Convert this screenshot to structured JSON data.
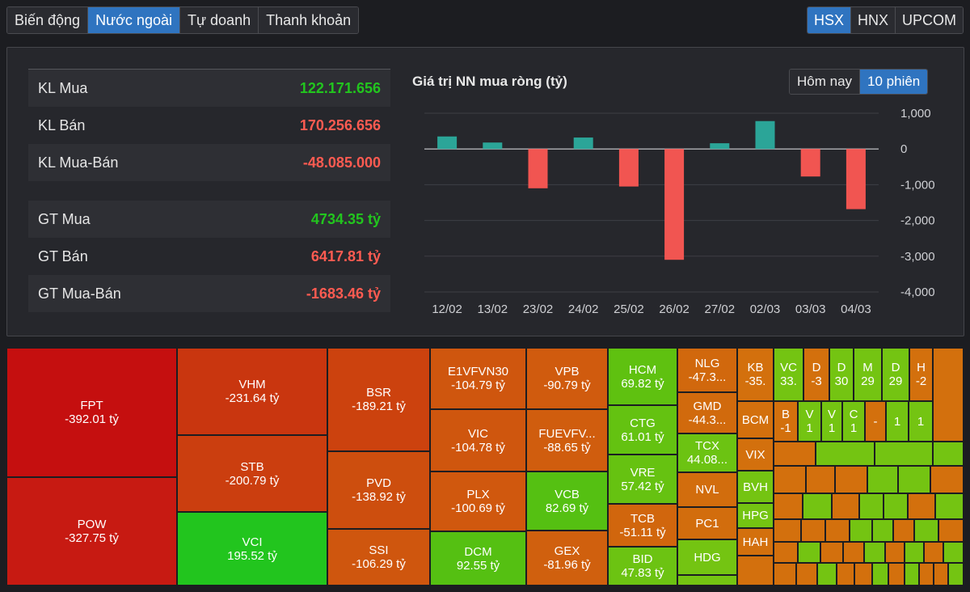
{
  "tabs": [
    "Biến động",
    "Nước ngoài",
    "Tự doanh",
    "Thanh khoản"
  ],
  "active_tab": 1,
  "exchanges": [
    "HSX",
    "HNX",
    "UPCOM"
  ],
  "active_exchange": 0,
  "stats": [
    {
      "label": "KL Mua",
      "value": "122.171.656",
      "color": "#22c51e"
    },
    {
      "label": "KL Bán",
      "value": "170.256.656",
      "color": "#ff5b51"
    },
    {
      "label": "KL Mua-Bán",
      "value": "-48.085.000",
      "color": "#ff5b51"
    },
    {
      "label": "GT Mua",
      "value": "4734.35 tỷ",
      "color": "#22c51e"
    },
    {
      "label": "GT Bán",
      "value": "6417.81 tỷ",
      "color": "#ff5b51"
    },
    {
      "label": "GT Mua-Bán",
      "value": "-1683.46 tỷ",
      "color": "#ff5b51"
    }
  ],
  "chart_title": "Giá trị NN mua ròng (tỷ)",
  "range_buttons": [
    "Hôm nay",
    "10 phiên"
  ],
  "active_range": 1,
  "chart_data": {
    "type": "bar",
    "title": "Giá trị NN mua ròng (tỷ)",
    "categories": [
      "12/02",
      "13/02",
      "23/02",
      "24/02",
      "25/02",
      "26/02",
      "27/02",
      "02/03",
      "03/03",
      "04/03"
    ],
    "values": [
      350,
      180,
      -1100,
      320,
      -1050,
      -3100,
      160,
      780,
      -770,
      -1683
    ],
    "ylim": [
      -4000,
      1000
    ],
    "yticks": [
      1000,
      0,
      -1000,
      -2000,
      -3000,
      -4000
    ],
    "ytick_labels": [
      "1,000",
      "0",
      "-1,000",
      "-2,000",
      "-3,000",
      "-4,000"
    ],
    "colors": {
      "positive": "#2ba598",
      "negative": "#f15551"
    },
    "grid": true
  },
  "treemap": [
    {
      "name": "FPT",
      "value": "-392.01 tỷ",
      "color": "#c50f0f"
    },
    {
      "name": "POW",
      "value": "-327.75 tỷ",
      "color": "#c71a12"
    },
    {
      "name": "VHM",
      "value": "-231.64 tỷ",
      "color": "#c9360f"
    },
    {
      "name": "STB",
      "value": "-200.79 tỷ",
      "color": "#cb3e0f"
    },
    {
      "name": "VCI",
      "value": "195.52 tỷ",
      "color": "#22c51e"
    },
    {
      "name": "BSR",
      "value": "-189.21 tỷ",
      "color": "#cc420e"
    },
    {
      "name": "PVD",
      "value": "-138.92 tỷ",
      "color": "#cd4e0e"
    },
    {
      "name": "SSI",
      "value": "-106.29 tỷ",
      "color": "#cf560e"
    },
    {
      "name": "E1VFVN30",
      "value": "-104.79 tỷ",
      "color": "#cf560e"
    },
    {
      "name": "VIC",
      "value": "-104.78 tỷ",
      "color": "#cf560e"
    },
    {
      "name": "PLX",
      "value": "-100.69 tỷ",
      "color": "#d0580e"
    },
    {
      "name": "DCM",
      "value": "92.55 tỷ",
      "color": "#55c012"
    },
    {
      "name": "VPB",
      "value": "-90.79 tỷ",
      "color": "#d05b0e"
    },
    {
      "name": "FUEVFV...",
      "value": "-88.65 tỷ",
      "color": "#d05d0e"
    },
    {
      "name": "VCB",
      "value": "82.69 tỷ",
      "color": "#55c012"
    },
    {
      "name": "GEX",
      "value": "-81.96 tỷ",
      "color": "#d0600e"
    },
    {
      "name": "HCM",
      "value": "69.82 tỷ",
      "color": "#5fc110"
    },
    {
      "name": "CTG",
      "value": "61.01 tỷ",
      "color": "#64c211"
    },
    {
      "name": "VRE",
      "value": "57.42 tỷ",
      "color": "#66c211"
    },
    {
      "name": "TCB",
      "value": "-51.11 tỷ",
      "color": "#d1660d"
    },
    {
      "name": "BID",
      "value": "47.83 tỷ",
      "color": "#6cc312"
    },
    {
      "name": "NLG",
      "value": "-47.3...",
      "color": "#d1680d"
    },
    {
      "name": "GMD",
      "value": "-44.3...",
      "color": "#d16a0d"
    },
    {
      "name": "TCX",
      "value": "44.08...",
      "color": "#6cc312"
    },
    {
      "name": "NVL",
      "value": "",
      "color": "#d26d0d"
    },
    {
      "name": "PC1",
      "value": "",
      "color": "#d26d0d"
    },
    {
      "name": "HDG",
      "value": "",
      "color": "#74c412"
    },
    {
      "name": "KB",
      "value": "-35.",
      "color": "#d3700d"
    },
    {
      "name": "BCM",
      "value": "",
      "color": "#d3700d"
    },
    {
      "name": "VIX",
      "value": "",
      "color": "#d3700d"
    },
    {
      "name": "BVH",
      "value": "",
      "color": "#74c412"
    },
    {
      "name": "HPG",
      "value": "",
      "color": "#74c412"
    },
    {
      "name": "HAH",
      "value": "",
      "color": "#d3700d"
    },
    {
      "name": "VC",
      "value": "33.",
      "color": "#74c412"
    },
    {
      "name": "D",
      "value": "-3",
      "color": "#d3700d"
    },
    {
      "name": "D",
      "value": "30",
      "color": "#74c412"
    },
    {
      "name": "M",
      "value": "29",
      "color": "#74c412"
    },
    {
      "name": "D",
      "value": "29",
      "color": "#74c412"
    },
    {
      "name": "H",
      "value": "-2",
      "color": "#d3700d"
    },
    {
      "name": "B",
      "value": "-1",
      "color": "#d3700d"
    },
    {
      "name": "V",
      "value": "1",
      "color": "#74c412"
    },
    {
      "name": "V",
      "value": "1",
      "color": "#74c412"
    },
    {
      "name": "C",
      "value": "1",
      "color": "#74c412"
    },
    {
      "name": "-",
      "value": "",
      "color": "#d3700d"
    },
    {
      "name": "1",
      "value": "",
      "color": "#74c412"
    },
    {
      "name": "1",
      "value": "",
      "color": "#74c412"
    },
    {
      "name": "-",
      "value": "",
      "color": "#d3700d"
    }
  ]
}
